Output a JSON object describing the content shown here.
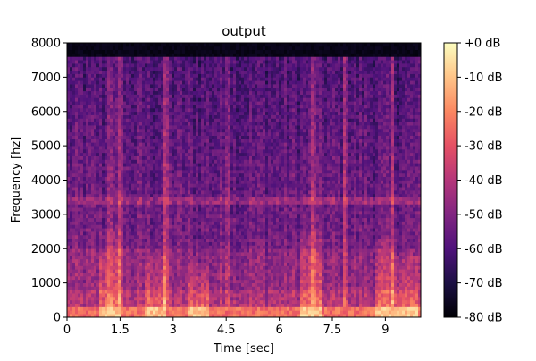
{
  "chart_data": {
    "type": "heatmap",
    "title": "output",
    "xlabel": "Time [sec]",
    "ylabel": "Frequency [hz]",
    "xlim": [
      0,
      10
    ],
    "ylim": [
      0,
      8000
    ],
    "x_ticks": [
      0,
      1.5,
      3,
      4.5,
      6,
      7.5,
      9
    ],
    "x_tick_labels": [
      "0",
      "1.5",
      "3",
      "4.5",
      "6",
      "7.5",
      "9"
    ],
    "y_ticks": [
      0,
      1000,
      2000,
      3000,
      4000,
      5000,
      6000,
      7000,
      8000
    ],
    "y_tick_labels": [
      "0",
      "1000",
      "2000",
      "3000",
      "4000",
      "5000",
      "6000",
      "7000",
      "8000"
    ],
    "colormap": "magma",
    "colorbar": {
      "range": [
        -80,
        0
      ],
      "ticks": [
        0,
        -10,
        -20,
        -30,
        -40,
        -50,
        -60,
        -70,
        -80
      ],
      "tick_labels": [
        "+0 dB",
        "-10 dB",
        "-20 dB",
        "-30 dB",
        "-40 dB",
        "-50 dB",
        "-60 dB",
        "-70 dB",
        "-80 dB"
      ]
    },
    "features": {
      "energy_cutoff_hz": 7600,
      "persistent_band_hz": 3400,
      "strong_low_band_hz": [
        0,
        300
      ],
      "vertical_transients_sec": [
        1.2,
        1.5,
        2.8,
        4.55,
        7.0,
        7.9,
        9.2
      ],
      "bursts": [
        {
          "t": 1.2,
          "freq_top_hz": 2600
        },
        {
          "t": 2.5,
          "freq_top_hz": 1800
        },
        {
          "t": 3.7,
          "freq_top_hz": 1600
        },
        {
          "t": 6.9,
          "freq_top_hz": 2500
        },
        {
          "t": 9.0,
          "freq_top_hz": 2300
        },
        {
          "t": 9.6,
          "freq_top_hz": 1800
        }
      ]
    },
    "grid": false,
    "legend": "none"
  }
}
